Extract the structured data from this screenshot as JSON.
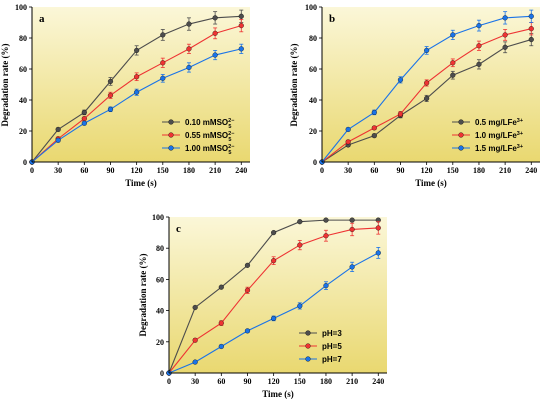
{
  "colors": {
    "bg_top": "#fbf7d8",
    "bg_bottom": "#e9d870"
  },
  "chart_data": [
    {
      "type": "line",
      "panel": "a",
      "xlabel": "Time (s)",
      "ylabel": "Degradation rate (%)",
      "xlim": [
        0,
        250
      ],
      "ylim": [
        0,
        100
      ],
      "xticks": [
        0,
        30,
        60,
        90,
        120,
        150,
        180,
        210,
        240
      ],
      "yticks": [
        0,
        20,
        40,
        60,
        80,
        100
      ],
      "legend_position": "bottom-right",
      "x": [
        0,
        30,
        60,
        90,
        120,
        150,
        180,
        210,
        240
      ],
      "series": [
        {
          "name": "0.10 mMSO",
          "sup": "2−",
          "sub": "5",
          "color": "#4d4d4d",
          "values": [
            0,
            21,
            32,
            52,
            72,
            82,
            89,
            93,
            94
          ],
          "err": [
            0,
            1,
            1.5,
            2.5,
            3,
            3.5,
            4,
            4,
            4
          ]
        },
        {
          "name": "0.55 mMSO",
          "sup": "2−",
          "sub": "5",
          "color": "#ee3333",
          "values": [
            0,
            15,
            28,
            43,
            55,
            64,
            73,
            83,
            88
          ],
          "err": [
            0,
            1,
            1,
            2,
            2.5,
            3,
            3,
            3.5,
            4
          ]
        },
        {
          "name": "1.00 mMSO",
          "sup": "2−",
          "sub": "5",
          "color": "#1a73e8",
          "values": [
            0,
            14,
            25,
            34,
            45,
            54,
            61,
            69,
            73
          ],
          "err": [
            0,
            1,
            1,
            1.5,
            2,
            2.5,
            3,
            3,
            3
          ]
        }
      ]
    },
    {
      "type": "line",
      "panel": "b",
      "xlabel": "Time (s)",
      "ylabel": "Degradation rate (%)",
      "xlim": [
        0,
        250
      ],
      "ylim": [
        0,
        100
      ],
      "xticks": [
        0,
        30,
        60,
        90,
        120,
        150,
        180,
        210,
        240
      ],
      "yticks": [
        0,
        20,
        40,
        60,
        80,
        100
      ],
      "legend_position": "bottom-right",
      "x": [
        0,
        30,
        60,
        90,
        120,
        150,
        180,
        210,
        240
      ],
      "series": [
        {
          "name": "0.5 mg/LFe",
          "sup": "3+",
          "sub": "",
          "color": "#4d4d4d",
          "values": [
            0,
            11,
            17,
            30,
            41,
            56,
            63,
            74,
            79
          ],
          "err": [
            0,
            1,
            1,
            1.5,
            2,
            2.5,
            3,
            3.5,
            4
          ]
        },
        {
          "name": "1.0 mg/LFe",
          "sup": "3+",
          "sub": "",
          "color": "#ee3333",
          "values": [
            0,
            13,
            22,
            31,
            51,
            64,
            75,
            82,
            86
          ],
          "err": [
            0,
            1,
            1,
            1.5,
            2,
            2.5,
            3,
            3.5,
            4
          ]
        },
        {
          "name": "1.5 mg/LFe",
          "sup": "3+",
          "sub": "",
          "color": "#1a73e8",
          "values": [
            0,
            21,
            32,
            53,
            72,
            82,
            88,
            93,
            94
          ],
          "err": [
            0,
            1,
            1.5,
            2,
            2.5,
            3,
            3.5,
            4,
            4
          ]
        }
      ]
    },
    {
      "type": "line",
      "panel": "c",
      "xlabel": "Time (s)",
      "ylabel": "Degradation rate (%)",
      "xlim": [
        0,
        250
      ],
      "ylim": [
        0,
        100
      ],
      "xticks": [
        0,
        30,
        60,
        90,
        120,
        150,
        180,
        210,
        240
      ],
      "yticks": [
        0,
        20,
        40,
        60,
        80,
        100
      ],
      "legend_position": "bottom-right",
      "x": [
        0,
        30,
        60,
        90,
        120,
        150,
        180,
        210,
        240
      ],
      "series": [
        {
          "name": "pH=3",
          "sup": "",
          "sub": "",
          "color": "#4d4d4d",
          "values": [
            0,
            42,
            55,
            69,
            90,
            97,
            98,
            98,
            98
          ],
          "err": [
            0,
            0,
            0,
            0,
            0,
            0.5,
            0.5,
            0.5,
            0.5
          ]
        },
        {
          "name": "pH=5",
          "sup": "",
          "sub": "",
          "color": "#ee3333",
          "values": [
            0,
            21,
            32,
            53,
            72,
            82,
            88,
            92,
            93
          ],
          "err": [
            0,
            1,
            1.5,
            2,
            2.5,
            3,
            3.5,
            4,
            4
          ]
        },
        {
          "name": "pH=7",
          "sup": "",
          "sub": "",
          "color": "#1a73e8",
          "values": [
            0,
            7,
            17,
            27,
            35,
            43,
            56,
            68,
            77
          ],
          "err": [
            0,
            0.5,
            1,
            1,
            1.5,
            2,
            2.5,
            3,
            3.5
          ]
        }
      ]
    }
  ]
}
